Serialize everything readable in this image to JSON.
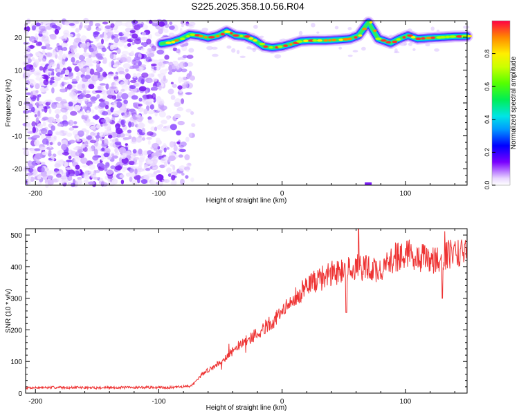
{
  "title": "S225.2025.358.10.56.R04",
  "chart_data": [
    {
      "type": "heatmap",
      "title": "S225.2025.358.10.56.R04",
      "xlabel": "Height of straight line (km)",
      "ylabel": "Frequency (Hz)",
      "xlim": [
        -208,
        150
      ],
      "ylim": [
        -25,
        25
      ],
      "x_ticks": [
        "-200",
        "-100",
        "0",
        "100"
      ],
      "y_ticks": [
        "-20",
        "-10",
        "0",
        "10",
        "20"
      ],
      "noise_region_x": [
        -208,
        -78
      ],
      "ridge": {
        "x": [
          -98,
          -90,
          -82,
          -75,
          -68,
          -60,
          -52,
          -45,
          -38,
          -30,
          -22,
          -15,
          -8,
          0,
          8,
          15,
          25,
          35,
          45,
          55,
          62,
          66,
          70,
          74,
          78,
          82,
          88,
          95,
          102,
          110,
          120,
          130,
          140,
          150
        ],
        "y": [
          18,
          18.5,
          19.5,
          20.8,
          20.5,
          19.8,
          20.5,
          21.8,
          20.5,
          20.2,
          19.0,
          17.2,
          16.8,
          17.2,
          18.0,
          18.8,
          19.0,
          19.0,
          19.2,
          19.5,
          20.5,
          22.5,
          24.5,
          22.0,
          19.5,
          19.0,
          18.2,
          19.5,
          20.5,
          19.5,
          19.8,
          20.0,
          20.2,
          20.3
        ]
      },
      "colorbar": {
        "label": "Normalized spectral amplitude",
        "range": [
          0,
          1
        ],
        "ticks": [
          "0.0",
          "0.2",
          "0.4",
          "0.6",
          "0.8"
        ]
      }
    },
    {
      "type": "line",
      "xlabel": "Height of straight line (km)",
      "ylabel": "SNR (10 * v/v)",
      "xlim": [
        -208,
        150
      ],
      "ylim": [
        0,
        520
      ],
      "x_ticks": [
        "-200",
        "-100",
        "0",
        "100"
      ],
      "y_ticks": [
        "0",
        "100",
        "200",
        "300",
        "400",
        "500"
      ],
      "color": "#ee3333",
      "series": [
        {
          "name": "SNR",
          "x": [
            -208,
            -180,
            -150,
            -120,
            -90,
            -75,
            -70,
            -65,
            -55,
            -45,
            -35,
            -25,
            -15,
            -5,
            5,
            15,
            25,
            35,
            45,
            55,
            62,
            70,
            80,
            90,
            100,
            110,
            120,
            130,
            140,
            150
          ],
          "values": [
            17,
            18,
            17,
            18,
            18,
            22,
            35,
            60,
            85,
            115,
            150,
            175,
            205,
            235,
            275,
            320,
            350,
            370,
            385,
            395,
            400,
            395,
            385,
            425,
            445,
            430,
            420,
            430,
            445,
            440
          ]
        }
      ]
    }
  ]
}
